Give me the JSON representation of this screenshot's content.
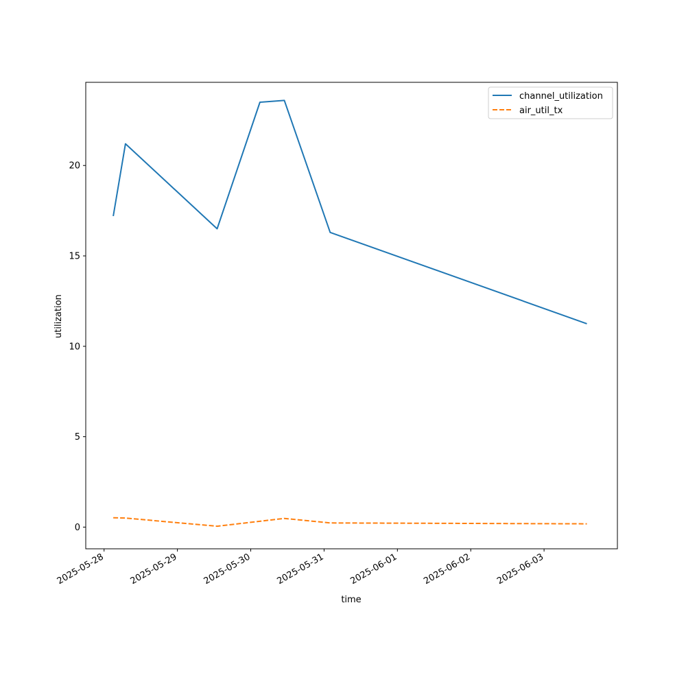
{
  "chart_data": {
    "type": "line",
    "title": "",
    "xlabel": "time",
    "ylabel": "utilization",
    "x_tick_labels": [
      "2025-05-28",
      "2025-05-29",
      "2025-05-30",
      "2025-05-31",
      "2025-06-01",
      "2025-06-02",
      "2025-06-03"
    ],
    "y_tick_labels": [
      "0",
      "5",
      "10",
      "15",
      "20"
    ],
    "y_ticks": [
      0,
      5,
      10,
      15,
      20
    ],
    "xlim": [
      "2025-05-27 18:00",
      "2025-06-04 00:00"
    ],
    "ylim": [
      -1.2,
      24.6
    ],
    "grid": false,
    "legend_position": "top-right",
    "series": [
      {
        "name": "channel_utilization",
        "color": "#1f77b4",
        "style": "solid",
        "points": [
          {
            "x": "2025-05-28 03:00",
            "y": 17.2
          },
          {
            "x": "2025-05-28 07:00",
            "y": 21.2
          },
          {
            "x": "2025-05-29 13:00",
            "y": 16.5
          },
          {
            "x": "2025-05-30 03:00",
            "y": 23.5
          },
          {
            "x": "2025-05-30 11:00",
            "y": 23.6
          },
          {
            "x": "2025-05-31 02:00",
            "y": 16.3
          },
          {
            "x": "2025-06-03 14:00",
            "y": 11.25
          }
        ]
      },
      {
        "name": "air_util_tx",
        "color": "#ff7f0e",
        "style": "dashed",
        "points": [
          {
            "x": "2025-05-28 03:00",
            "y": 0.52
          },
          {
            "x": "2025-05-28 07:00",
            "y": 0.5
          },
          {
            "x": "2025-05-29 13:00",
            "y": 0.05
          },
          {
            "x": "2025-05-30 11:00",
            "y": 0.48
          },
          {
            "x": "2025-05-31 02:00",
            "y": 0.23
          },
          {
            "x": "2025-06-03 14:00",
            "y": 0.18
          }
        ]
      }
    ]
  }
}
